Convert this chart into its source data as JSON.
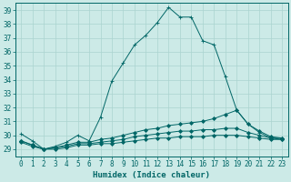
{
  "title": "",
  "xlabel": "Humidex (Indice chaleur)",
  "ylabel": "",
  "xlim": [
    -0.5,
    23.5
  ],
  "ylim": [
    28.5,
    39.5
  ],
  "yticks": [
    29,
    30,
    31,
    32,
    33,
    34,
    35,
    36,
    37,
    38,
    39
  ],
  "xticks": [
    0,
    1,
    2,
    3,
    4,
    5,
    6,
    7,
    8,
    9,
    10,
    11,
    12,
    13,
    14,
    15,
    16,
    17,
    18,
    19,
    20,
    21,
    22,
    23
  ],
  "bg_color": "#cceae7",
  "grid_color": "#aad4d0",
  "line_color": "#006666",
  "lines": [
    {
      "x": [
        0,
        1,
        2,
        3,
        4,
        5,
        6,
        7,
        8,
        9,
        10,
        11,
        12,
        13,
        14,
        15,
        16,
        17,
        18,
        19,
        20,
        21,
        22,
        23
      ],
      "y": [
        30.1,
        29.6,
        29.0,
        29.2,
        29.5,
        30.0,
        29.6,
        31.3,
        33.9,
        35.2,
        36.5,
        37.2,
        38.1,
        39.2,
        38.5,
        38.5,
        36.8,
        36.5,
        34.2,
        31.8,
        30.8,
        30.2,
        29.8,
        29.8
      ],
      "marker": "+"
    },
    {
      "x": [
        0,
        1,
        2,
        3,
        4,
        5,
        6,
        7,
        8,
        9,
        10,
        11,
        12,
        13,
        14,
        15,
        16,
        17,
        18,
        19,
        20,
        21,
        22,
        23
      ],
      "y": [
        29.6,
        29.3,
        29.0,
        29.1,
        29.3,
        29.5,
        29.5,
        29.7,
        29.8,
        30.0,
        30.2,
        30.4,
        30.5,
        30.7,
        30.8,
        30.9,
        31.0,
        31.2,
        31.5,
        31.8,
        30.8,
        30.3,
        29.9,
        29.8
      ],
      "marker": "D"
    },
    {
      "x": [
        0,
        1,
        2,
        3,
        4,
        5,
        6,
        7,
        8,
        9,
        10,
        11,
        12,
        13,
        14,
        15,
        16,
        17,
        18,
        19,
        20,
        21,
        22,
        23
      ],
      "y": [
        29.6,
        29.3,
        29.0,
        29.1,
        29.2,
        29.4,
        29.4,
        29.5,
        29.6,
        29.7,
        29.9,
        30.0,
        30.1,
        30.2,
        30.3,
        30.3,
        30.4,
        30.4,
        30.5,
        30.5,
        30.2,
        30.0,
        29.8,
        29.7
      ],
      "marker": "D"
    },
    {
      "x": [
        0,
        1,
        2,
        3,
        4,
        5,
        6,
        7,
        8,
        9,
        10,
        11,
        12,
        13,
        14,
        15,
        16,
        17,
        18,
        19,
        20,
        21,
        22,
        23
      ],
      "y": [
        29.5,
        29.2,
        29.0,
        29.0,
        29.1,
        29.3,
        29.3,
        29.4,
        29.4,
        29.5,
        29.6,
        29.7,
        29.8,
        29.8,
        29.9,
        29.9,
        29.9,
        30.0,
        30.0,
        30.0,
        29.9,
        29.8,
        29.7,
        29.7
      ],
      "marker": "D"
    }
  ]
}
